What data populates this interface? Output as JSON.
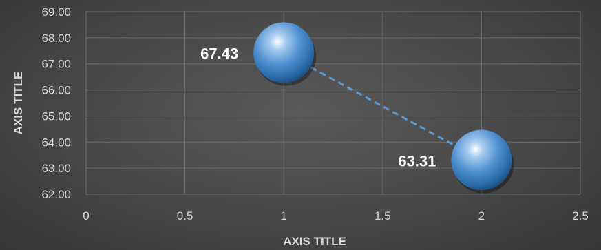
{
  "chart_data": {
    "type": "bubble",
    "title": "",
    "xlabel": "AXIS TITLE",
    "ylabel": "AXIS TITLE",
    "xlim": [
      0,
      2.5
    ],
    "ylim": [
      62,
      69
    ],
    "xticks": [
      "0",
      "0.5",
      "1",
      "1.5",
      "2",
      "2.5"
    ],
    "yticks": [
      "62.00",
      "63.00",
      "64.00",
      "65.00",
      "66.00",
      "67.00",
      "68.00",
      "69.00"
    ],
    "grid": true,
    "legend": "none",
    "series": [
      {
        "color": "#5b9bd5",
        "points": [
          {
            "x": 1,
            "y": 67.43,
            "label": "67.43"
          },
          {
            "x": 2,
            "y": 63.31,
            "label": "63.31"
          }
        ],
        "trendline": {
          "type": "linear",
          "style": "dashed",
          "color": "#5b9bd5"
        }
      }
    ]
  },
  "colors": {
    "background": "#474747",
    "gridline": "#6e6e6e",
    "text": "#d9d9d9",
    "bubble": "#5b9bd5"
  }
}
